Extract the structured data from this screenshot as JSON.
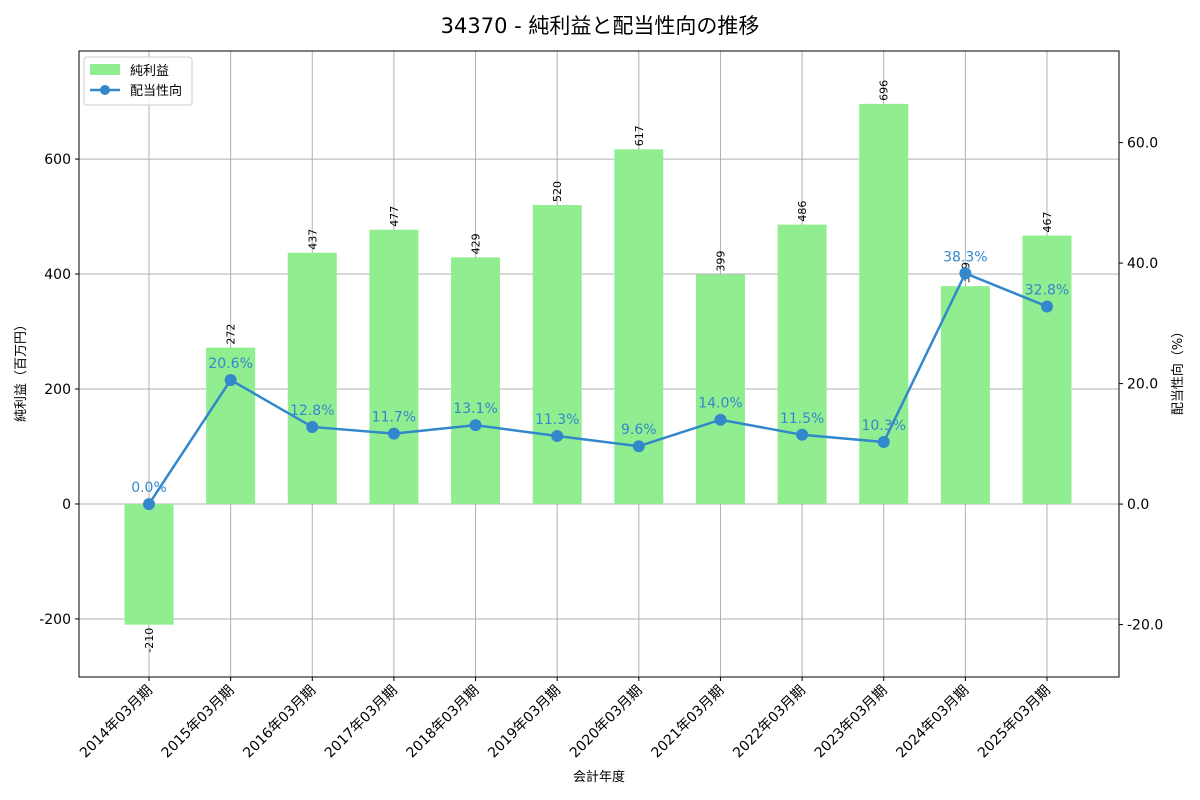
{
  "title": "34370 - 純利益と配当性向の推移",
  "legend": [
    {
      "label": "純利益",
      "type": "bar",
      "color": "#90ee90"
    },
    {
      "label": "配当性向",
      "type": "line",
      "color": "#3388cc"
    }
  ],
  "axes": {
    "xlabel": "会計年度",
    "ylabel_left": "純利益（百万円）",
    "ylabel_right": "配当性向（%）",
    "left_ticks": [
      "-200",
      "0",
      "200",
      "400",
      "600"
    ],
    "right_ticks": [
      "-20.0",
      "0.0",
      "20.0",
      "40.0",
      "60.0"
    ]
  },
  "chart_data": {
    "type": "bar",
    "title": "34370 - 純利益と配当性向の推移",
    "xlabel": "会計年度",
    "ylabel": "純利益（百万円）",
    "ylabel_right": "配当性向（%）",
    "categories": [
      "2014年03月期",
      "2015年03月期",
      "2016年03月期",
      "2017年03月期",
      "2018年03月期",
      "2019年03月期",
      "2020年03月期",
      "2021年03月期",
      "2022年03月期",
      "2023年03月期",
      "2024年03月期",
      "2025年03月期"
    ],
    "series": [
      {
        "name": "純利益",
        "type": "bar",
        "axis": "left",
        "color": "#90ee90",
        "values": [
          -210,
          272,
          437,
          477,
          429,
          520,
          617,
          399,
          486,
          696,
          379,
          467
        ],
        "labels": [
          "-210",
          "272",
          "437",
          "477",
          "429",
          "520",
          "617",
          "399",
          "486",
          "696",
          "379",
          "467"
        ]
      },
      {
        "name": "配当性向",
        "type": "line",
        "axis": "right",
        "color": "#3388cc",
        "values": [
          0.0,
          20.6,
          12.8,
          11.7,
          13.1,
          11.3,
          9.6,
          14.0,
          11.5,
          10.3,
          38.3,
          32.8
        ],
        "labels": [
          "0.0%",
          "20.6%",
          "12.8%",
          "11.7%",
          "13.1%",
          "11.3%",
          "9.6%",
          "14.0%",
          "11.5%",
          "10.3%",
          "38.3%",
          "32.8%"
        ]
      }
    ],
    "ylim": [
      -301,
      788
    ],
    "ylim_right": [
      -28.7,
      75.2
    ],
    "left_ticks": [
      -200,
      0,
      200,
      400,
      600
    ],
    "right_ticks": [
      -20,
      0,
      20,
      40,
      60
    ],
    "grid": true,
    "legend_position": "upper left"
  }
}
